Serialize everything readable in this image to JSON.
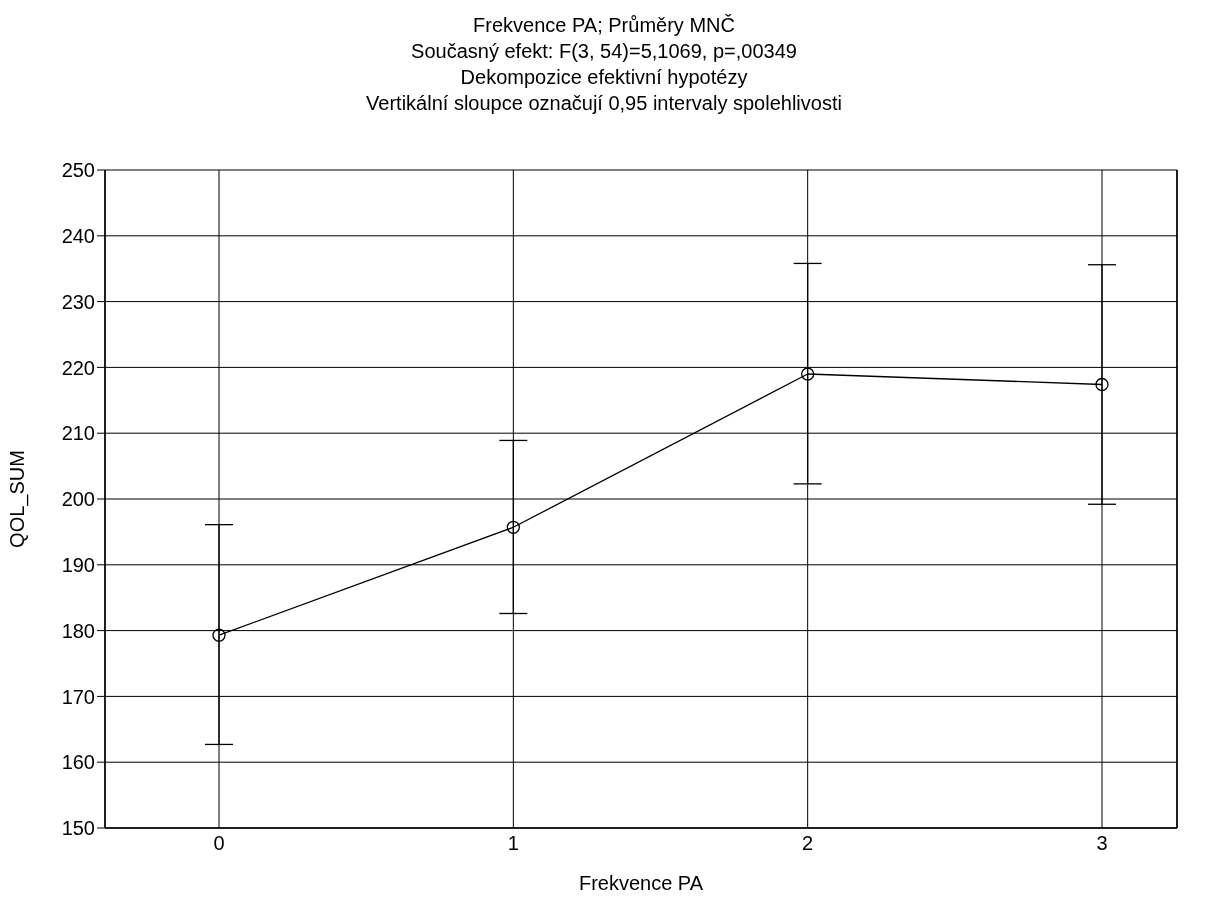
{
  "chart_data": {
    "type": "line",
    "title": "Frekvence PA; Průměry MNČ",
    "subtitle": "Současný efekt: F(3, 54)=5,1069, p=,00349\nDekompozice efektivní hypotézy\nVertikální sloupce označují 0,95 intervaly spolehlivosti",
    "xlabel": "Frekvence PA",
    "ylabel": "QOL_SUM",
    "categories": [
      "0",
      "1",
      "2",
      "3"
    ],
    "series": [
      {
        "color": "#000000",
        "values": [
          179.3,
          195.7,
          219.0,
          217.4
        ],
        "errors": [
          [
            162.7,
            196.1
          ],
          [
            182.6,
            208.9
          ],
          [
            202.3,
            235.8
          ],
          [
            199.2,
            235.6
          ]
        ]
      }
    ],
    "ylim": [
      150,
      250
    ],
    "yticks": [
      150,
      160,
      170,
      180,
      190,
      200,
      210,
      220,
      230,
      240,
      250
    ],
    "grid": true,
    "marker": "circle",
    "line_style": "solid"
  }
}
